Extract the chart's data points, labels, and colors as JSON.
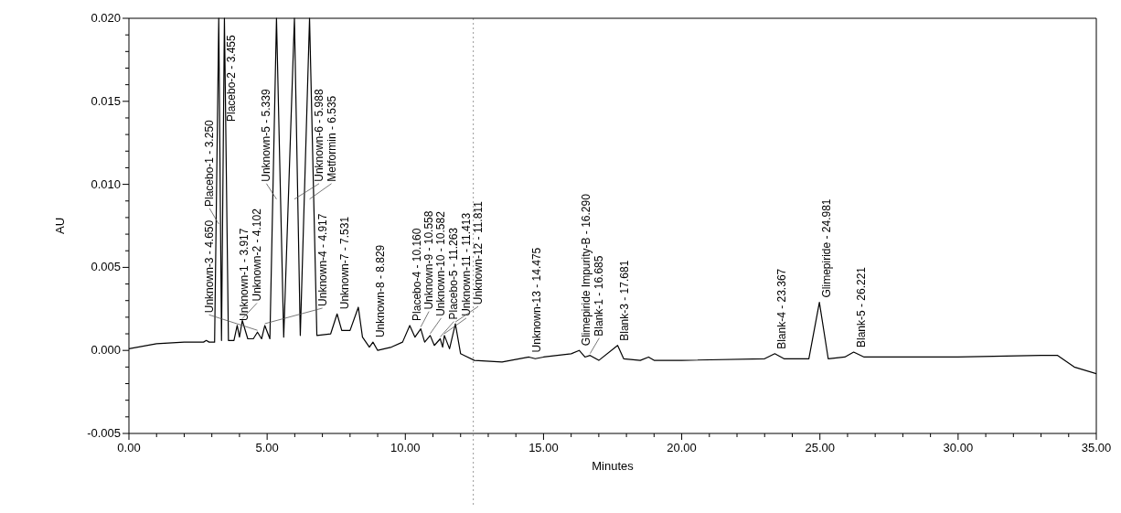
{
  "chart_data": {
    "type": "line",
    "xlabel": "Minutes",
    "ylabel": "AU",
    "grid": false,
    "marker": "none",
    "line_style": "solid",
    "xlim": [
      0,
      35
    ],
    "ylim": [
      -0.005,
      0.02
    ],
    "xticks": [
      {
        "value": 0,
        "label": "0.00"
      },
      {
        "value": 1,
        "label": null
      },
      {
        "value": 2,
        "label": null
      },
      {
        "value": 3,
        "label": null
      },
      {
        "value": 4,
        "label": null
      },
      {
        "value": 5,
        "label": "5.00"
      },
      {
        "value": 6,
        "label": null
      },
      {
        "value": 7,
        "label": null
      },
      {
        "value": 8,
        "label": null
      },
      {
        "value": 9,
        "label": null
      },
      {
        "value": 10,
        "label": "10.00"
      },
      {
        "value": 11,
        "label": null
      },
      {
        "value": 12,
        "label": null
      },
      {
        "value": 13,
        "label": null
      },
      {
        "value": 14,
        "label": null
      },
      {
        "value": 15,
        "label": "15.00"
      },
      {
        "value": 16,
        "label": null
      },
      {
        "value": 17,
        "label": null
      },
      {
        "value": 18,
        "label": null
      },
      {
        "value": 19,
        "label": null
      },
      {
        "value": 20,
        "label": "20.00"
      },
      {
        "value": 21,
        "label": null
      },
      {
        "value": 22,
        "label": null
      },
      {
        "value": 23,
        "label": null
      },
      {
        "value": 24,
        "label": null
      },
      {
        "value": 25,
        "label": "25.00"
      },
      {
        "value": 26,
        "label": null
      },
      {
        "value": 27,
        "label": null
      },
      {
        "value": 28,
        "label": null
      },
      {
        "value": 29,
        "label": null
      },
      {
        "value": 30,
        "label": "30.00"
      },
      {
        "value": 31,
        "label": null
      },
      {
        "value": 32,
        "label": null
      },
      {
        "value": 33,
        "label": null
      },
      {
        "value": 34,
        "label": null
      },
      {
        "value": 35,
        "label": "35.00"
      }
    ],
    "yticks": [
      {
        "value": -0.005,
        "label": "-0.005"
      },
      {
        "value": -0.004,
        "label": null
      },
      {
        "value": -0.003,
        "label": null
      },
      {
        "value": -0.002,
        "label": null
      },
      {
        "value": -0.001,
        "label": null
      },
      {
        "value": 0,
        "label": "0.000"
      },
      {
        "value": 0.001,
        "label": null
      },
      {
        "value": 0.002,
        "label": null
      },
      {
        "value": 0.003,
        "label": null
      },
      {
        "value": 0.004,
        "label": null
      },
      {
        "value": 0.005,
        "label": "0.005"
      },
      {
        "value": 0.006,
        "label": null
      },
      {
        "value": 0.007,
        "label": null
      },
      {
        "value": 0.008,
        "label": null
      },
      {
        "value": 0.009,
        "label": null
      },
      {
        "value": 0.01,
        "label": "0.010"
      },
      {
        "value": 0.011,
        "label": null
      },
      {
        "value": 0.012,
        "label": null
      },
      {
        "value": 0.013,
        "label": null
      },
      {
        "value": 0.014,
        "label": null
      },
      {
        "value": 0.015,
        "label": "0.015"
      },
      {
        "value": 0.016,
        "label": null
      },
      {
        "value": 0.017,
        "label": null
      },
      {
        "value": 0.018,
        "label": null
      },
      {
        "value": 0.019,
        "label": null
      },
      {
        "value": 0.02,
        "label": "0.020"
      }
    ],
    "ref_lines": [
      {
        "axis": "x",
        "value": 12.46,
        "color": "#999999",
        "line_style": "dotted"
      }
    ],
    "series": [
      {
        "color": "#000000",
        "x": [
          0,
          1,
          2,
          2.7,
          2.8,
          2.9,
          3.1,
          3.25,
          3.35,
          3.455,
          3.6,
          3.8,
          3.917,
          4.0,
          4.102,
          4.3,
          4.5,
          4.65,
          4.8,
          4.917,
          5.1,
          5.339,
          5.6,
          5.988,
          6.2,
          6.535,
          6.8,
          7.3,
          7.531,
          7.7,
          8.0,
          8.3,
          8.45,
          8.7,
          8.829,
          9.0,
          9.5,
          9.9,
          10.16,
          10.35,
          10.558,
          10.7,
          10.9,
          11.05,
          11.263,
          11.35,
          11.413,
          11.6,
          11.811,
          12.0,
          12.5,
          13.5,
          14.475,
          14.7,
          15.0,
          16.0,
          16.29,
          16.5,
          16.685,
          17.0,
          17.681,
          17.9,
          18.5,
          18.8,
          19.0,
          20,
          23.0,
          23.367,
          23.7,
          24.6,
          24.981,
          25.3,
          25.9,
          26.221,
          26.6,
          30,
          33,
          33.6,
          34.2,
          35
        ],
        "values": [
          0.0001,
          0.0004,
          0.0005,
          0.0005,
          0.0006,
          0.0005,
          0.0005,
          0.02,
          0.0006,
          0.02,
          0.0006,
          0.0006,
          0.0015,
          0.0008,
          0.0018,
          0.0007,
          0.0007,
          0.0011,
          0.0007,
          0.0015,
          0.0007,
          0.02,
          0.0008,
          0.02,
          0.0009,
          0.02,
          0.0009,
          0.001,
          0.0022,
          0.0012,
          0.0012,
          0.0026,
          0.0008,
          0.0002,
          0.0005,
          0.0,
          0.0002,
          0.0005,
          0.0015,
          0.0008,
          0.0013,
          0.0005,
          0.0009,
          0.0003,
          0.0007,
          0.0002,
          0.0009,
          0.0001,
          0.0016,
          -0.0002,
          -0.0006,
          -0.0007,
          -0.0004,
          -0.0005,
          -0.0004,
          -0.0002,
          0.0,
          -0.0004,
          -0.0003,
          -0.0006,
          0.0003,
          -0.0005,
          -0.0006,
          -0.0004,
          -0.0006,
          -0.0006,
          -0.0005,
          -0.0002,
          -0.0005,
          -0.0005,
          0.0029,
          -0.0005,
          -0.0004,
          -0.0001,
          -0.0004,
          -0.0004,
          -0.0003,
          -0.0003,
          -0.001,
          -0.0014
        ]
      }
    ],
    "annotations": [
      {
        "text": "Placebo-1 - 3.250",
        "x": 3.25,
        "y": 0.0075
      },
      {
        "text": "Placebo-2 - 3.455",
        "x": 3.455,
        "y": 0.0135
      },
      {
        "text": "Unknown-1 - 3.917",
        "x": 3.917,
        "y": 0.0015
      },
      {
        "text": "Unknown-2 - 4.102",
        "x": 4.102,
        "y": 0.0018
      },
      {
        "text": "Unknown-3 - 4.650",
        "x": 4.65,
        "y": 0.0011
      },
      {
        "text": "Unknown-4 - 4.917",
        "x": 4.917,
        "y": 0.0015
      },
      {
        "text": "Unknown-5 - 5.339",
        "x": 5.339,
        "y": 0.009
      },
      {
        "text": "Unknown-6 - 5.988",
        "x": 5.988,
        "y": 0.009
      },
      {
        "text": "Metformin - 6.535",
        "x": 6.535,
        "y": 0.009
      },
      {
        "text": "Unknown-7 - 7.531",
        "x": 7.531,
        "y": 0.0022
      },
      {
        "text": "Unknown-8 - 8.829",
        "x": 8.829,
        "y": 0.0005
      },
      {
        "text": "Placebo-4 - 10.160",
        "x": 10.16,
        "y": 0.0015
      },
      {
        "text": "Unknown-9 - 10.558",
        "x": 10.558,
        "y": 0.0013
      },
      {
        "text": "Unknown-10 - 10.582",
        "x": 10.9,
        "y": 0.0009
      },
      {
        "text": "Placebo-5 - 11.263",
        "x": 11.263,
        "y": 0.0007
      },
      {
        "text": "Unknown-11 - 11.413",
        "x": 11.413,
        "y": 0.0009
      },
      {
        "text": "Unknown-12 - 11.811",
        "x": 11.811,
        "y": 0.0016
      },
      {
        "text": "Unknown-13 - 14.475",
        "x": 14.475,
        "y": -0.0004
      },
      {
        "text": "Glimepiride Impurity-B - 16.290",
        "x": 16.29,
        "y": 0.0
      },
      {
        "text": "Blank-1 - 16.685",
        "x": 16.685,
        "y": -0.0003
      },
      {
        "text": "Blank-3 - 17.681",
        "x": 17.681,
        "y": 0.0003
      },
      {
        "text": "Blank-4 - 23.367",
        "x": 23.367,
        "y": -0.0002
      },
      {
        "text": "Glimepiride - 24.981",
        "x": 24.981,
        "y": 0.0029
      },
      {
        "text": "Blank-5 - 26.221",
        "x": 26.221,
        "y": -0.0001
      }
    ]
  }
}
